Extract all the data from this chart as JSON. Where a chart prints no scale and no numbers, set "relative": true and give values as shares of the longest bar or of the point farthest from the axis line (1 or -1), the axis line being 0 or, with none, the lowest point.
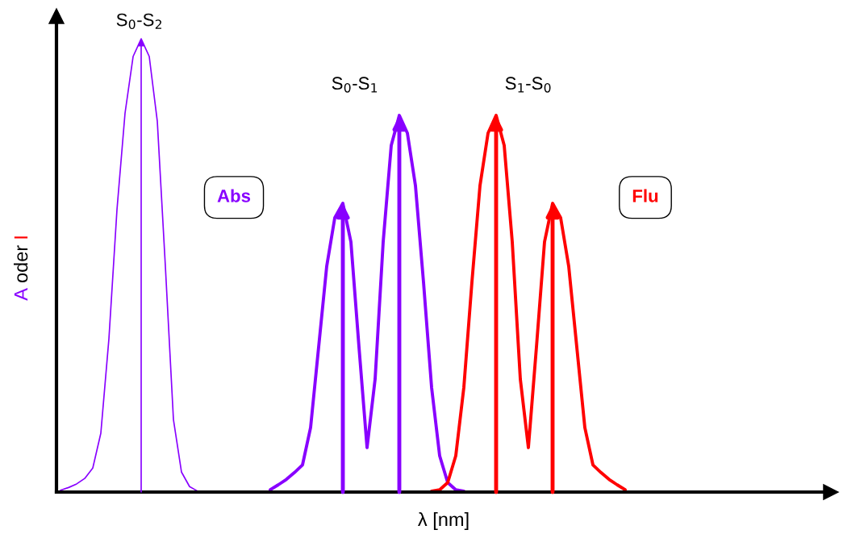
{
  "chart_data": {
    "type": "line",
    "relative": true,
    "tick_labels": false,
    "xlabel": "λ [nm]",
    "ylabel": "A oder I",
    "annotations": [
      "S$_{0}$-S$_{2}$",
      "S$_{0}$-S$_{1}$",
      "S$_{1}$-S$_{0}$",
      "Abs",
      "Flu"
    ],
    "categories": [
      null,
      null,
      null,
      null,
      null,
      null,
      null,
      null,
      null,
      null,
      null,
      null,
      null,
      null,
      null,
      null,
      null,
      null,
      null,
      null,
      null,
      null,
      null,
      null,
      null,
      null,
      null,
      null,
      null,
      null,
      null,
      null,
      null,
      null,
      null,
      null,
      null,
      null,
      null,
      null,
      null,
      null,
      null,
      null,
      null,
      null,
      null,
      null,
      null,
      null,
      null,
      null,
      null,
      null,
      null,
      null,
      null,
      null,
      null,
      null,
      null,
      null,
      null,
      null,
      null,
      null,
      null,
      null,
      null,
      null,
      null,
      null,
      null,
      null,
      null,
      null,
      null,
      null,
      null,
      null,
      null,
      null,
      null,
      null,
      null,
      null,
      null,
      null,
      null,
      null,
      null,
      null,
      null,
      null,
      null,
      null,
      null
    ],
    "series": [
      {
        "type": "line",
        "color": "#8800ff",
        "values": [
          null,
          0.004,
          0.01,
          0.018,
          0.03,
          0.053,
          0.13,
          0.338,
          0.623,
          0.836,
          0.961,
          1,
          0.961,
          0.818,
          0.498,
          0.16,
          0.044,
          0.012,
          0.002,
          null,
          null,
          null,
          null,
          null,
          null,
          null,
          null,
          null,
          null,
          null,
          null,
          null,
          null,
          null,
          null,
          null,
          null,
          null,
          null,
          null,
          null,
          null,
          null,
          null,
          null,
          null,
          null,
          null,
          null,
          null,
          null,
          null,
          null,
          null,
          null,
          null,
          null,
          null,
          null,
          null,
          null,
          null,
          null,
          null,
          null,
          null,
          null,
          null,
          null,
          null,
          null,
          null,
          null,
          null,
          null,
          null,
          null,
          null,
          null,
          null,
          null,
          null,
          null,
          null,
          null,
          null,
          null,
          null,
          null,
          null,
          null,
          null,
          null,
          null,
          null,
          null,
          null
        ]
      },
      {
        "type": "line",
        "color": "#8800ff",
        "values": [
          null,
          null,
          null,
          null,
          null,
          null,
          null,
          null,
          null,
          null,
          null,
          null,
          null,
          null,
          null,
          null,
          null,
          null,
          null,
          null,
          null,
          null,
          null,
          null,
          null,
          null,
          null,
          0.005,
          0.016,
          0.028,
          0.043,
          0.06,
          0.142,
          0.32,
          0.498,
          0.605,
          0.637,
          0.552,
          0.32,
          0.098,
          0.249,
          0.552,
          0.765,
          0.831,
          0.792,
          0.676,
          0.463,
          0.231,
          0.08,
          0.021,
          0.005,
          0.002,
          null,
          null,
          null,
          null,
          null,
          null,
          null,
          null,
          null,
          null,
          null,
          null,
          null,
          null,
          null,
          null,
          null,
          null,
          null,
          null,
          null,
          null,
          null,
          null,
          null,
          null,
          null,
          null,
          null,
          null,
          null,
          null,
          null,
          null,
          null,
          null,
          null,
          null,
          null,
          null,
          null,
          null,
          null,
          null,
          null
        ]
      },
      {
        "type": "line",
        "color": "#ff0000",
        "values": [
          null,
          null,
          null,
          null,
          null,
          null,
          null,
          null,
          null,
          null,
          null,
          null,
          null,
          null,
          null,
          null,
          null,
          null,
          null,
          null,
          null,
          null,
          null,
          null,
          null,
          null,
          null,
          null,
          null,
          null,
          null,
          null,
          null,
          null,
          null,
          null,
          null,
          null,
          null,
          null,
          null,
          null,
          null,
          null,
          null,
          null,
          null,
          0.002,
          0.005,
          0.021,
          0.08,
          0.231,
          0.463,
          0.676,
          0.792,
          0.831,
          0.765,
          0.552,
          0.249,
          0.098,
          0.32,
          0.552,
          0.637,
          0.605,
          0.498,
          0.32,
          0.142,
          0.06,
          0.043,
          0.028,
          0.016,
          0.005,
          null,
          null,
          null,
          null,
          null,
          null,
          null,
          null,
          null,
          null,
          null,
          null,
          null,
          null,
          null,
          null,
          null,
          null,
          null,
          null,
          null,
          null,
          null,
          null,
          null
        ]
      }
    ]
  }
}
